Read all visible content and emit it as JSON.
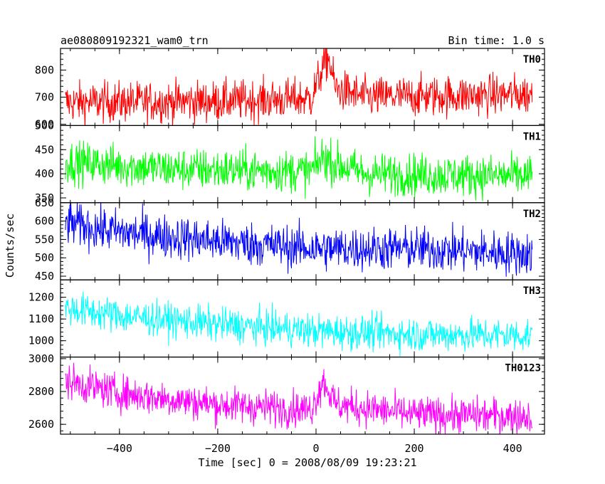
{
  "chart_data": {
    "type": "line",
    "title": "ae080809192321_wam0_trn",
    "bin_label": "Bin time: 1.0 s",
    "xlabel": "Time [sec] 0 = 2008/08/09 19:23:21",
    "ylabel": "Counts/sec",
    "xlim": [
      -520,
      465
    ],
    "x_start": -510,
    "x_end": 440,
    "x_step": 1,
    "x_ticks": [
      -400,
      -200,
      0,
      200,
      400
    ],
    "x_tick_labels": [
      "−400",
      "−200",
      "0",
      "200",
      "400"
    ],
    "panels": [
      {
        "name": "TH0",
        "color": "#ff0000",
        "ylim": [
          595,
          880
        ],
        "y_ticks": [
          600,
          700,
          800
        ],
        "y_tick_labels": [
          "600",
          "700",
          "800"
        ],
        "profile": [
          [
            -510,
            680
          ],
          [
            -200,
            685
          ],
          [
            -10,
            695
          ],
          [
            10,
            790
          ],
          [
            25,
            850
          ],
          [
            40,
            730
          ],
          [
            100,
            700
          ],
          [
            440,
            710
          ]
        ],
        "noise": 38
      },
      {
        "name": "TH1",
        "color": "#00ff00",
        "ylim": [
          340,
          500
        ],
        "y_ticks": [
          350,
          400,
          450,
          500
        ],
        "y_tick_labels": [
          "350",
          "400",
          "450",
          "500"
        ],
        "profile": [
          [
            -510,
            425
          ],
          [
            -300,
            410
          ],
          [
            -10,
            405
          ],
          [
            15,
            435
          ],
          [
            40,
            420
          ],
          [
            100,
            400
          ],
          [
            440,
            395
          ]
        ],
        "noise": 22
      },
      {
        "name": "TH2",
        "color": "#0000ff",
        "ylim": [
          440,
          650
        ],
        "y_ticks": [
          450,
          500,
          550,
          600,
          650
        ],
        "y_tick_labels": [
          "450",
          "500",
          "550",
          "600",
          "650"
        ],
        "profile": [
          [
            -510,
            595
          ],
          [
            -400,
            570
          ],
          [
            -200,
            545
          ],
          [
            0,
            525
          ],
          [
            200,
            525
          ],
          [
            440,
            510
          ]
        ],
        "noise": 30
      },
      {
        "name": "TH3",
        "color": "#00ffff",
        "ylim": [
          925,
          1280
        ],
        "y_ticks": [
          1000,
          1100,
          1200
        ],
        "y_tick_labels": [
          "1000",
          "1100",
          "1200"
        ],
        "profile": [
          [
            -510,
            1150
          ],
          [
            -400,
            1115
          ],
          [
            -200,
            1075
          ],
          [
            0,
            1045
          ],
          [
            200,
            1030
          ],
          [
            440,
            1025
          ]
        ],
        "noise": 40
      },
      {
        "name": "TH0123",
        "color": "#ff00ff",
        "ylim": [
          2540,
          3010
        ],
        "y_ticks": [
          2600,
          2800,
          3000
        ],
        "y_tick_labels": [
          "2600",
          "2800",
          "3000"
        ],
        "profile": [
          [
            -510,
            2865
          ],
          [
            -400,
            2790
          ],
          [
            -200,
            2720
          ],
          [
            -10,
            2690
          ],
          [
            15,
            2870
          ],
          [
            40,
            2720
          ],
          [
            200,
            2660
          ],
          [
            440,
            2650
          ]
        ],
        "noise": 55
      }
    ]
  }
}
